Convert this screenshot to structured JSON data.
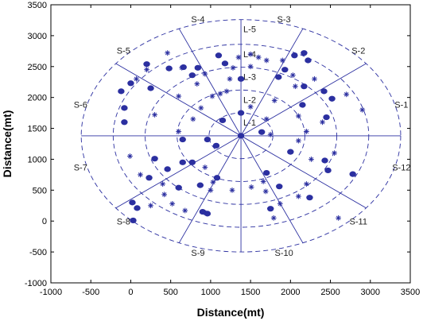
{
  "chart_data": {
    "type": "scatter",
    "xlabel": "Distance(mt)",
    "ylabel": "Distance(mt)",
    "xlim": [
      -1000,
      3500
    ],
    "ylim": [
      -1000,
      3500
    ],
    "xticks": [
      -1000,
      -500,
      0,
      500,
      1000,
      1500,
      2000,
      2500,
      3000,
      3500
    ],
    "yticks": [
      -1000,
      -500,
      0,
      500,
      1000,
      1500,
      2000,
      2500,
      3000,
      3500
    ],
    "center": [
      1380,
      1380
    ],
    "colors": {
      "marks": "#2b2fa0",
      "frame": "#000000"
    },
    "rings": [
      {
        "label": "L-1",
        "rx": 400,
        "ry": 370
      },
      {
        "label": "L-2",
        "rx": 800,
        "ry": 740
      },
      {
        "label": "L-3",
        "rx": 1200,
        "ry": 1110
      },
      {
        "label": "L-4",
        "rx": 1600,
        "ry": 1480
      },
      {
        "label": "L-5",
        "rx": 2000,
        "ry": 1880
      }
    ],
    "sectors": [
      {
        "label": "S-1",
        "angle_deg": 15
      },
      {
        "label": "S-2",
        "angle_deg": 45
      },
      {
        "label": "S-3",
        "angle_deg": 75
      },
      {
        "label": "S-4",
        "angle_deg": 105
      },
      {
        "label": "S-5",
        "angle_deg": 135
      },
      {
        "label": "S-6",
        "angle_deg": 165
      },
      {
        "label": "S-7",
        "angle_deg": 195
      },
      {
        "label": "S-8",
        "angle_deg": 225
      },
      {
        "label": "S-9",
        "angle_deg": 255
      },
      {
        "label": "S-10",
        "angle_deg": 285
      },
      {
        "label": "S-11",
        "angle_deg": 315
      },
      {
        "label": "S-12",
        "angle_deg": 345
      }
    ],
    "series": [
      {
        "marker": "dot",
        "points": [
          [
            1380,
            1380
          ],
          [
            1380,
            1750
          ],
          [
            1380,
            2300
          ],
          [
            1100,
            2680
          ],
          [
            1180,
            2550
          ],
          [
            1850,
            2330
          ],
          [
            2050,
            2680
          ],
          [
            1930,
            2450
          ],
          [
            2170,
            2720
          ],
          [
            2220,
            2600
          ],
          [
            2170,
            2180
          ],
          [
            2420,
            2100
          ],
          [
            2150,
            1880
          ],
          [
            2520,
            1980
          ],
          [
            2450,
            1680
          ],
          [
            2000,
            1120
          ],
          [
            2430,
            980
          ],
          [
            2470,
            820
          ],
          [
            2780,
            760
          ],
          [
            2240,
            380
          ],
          [
            1750,
            200
          ],
          [
            1860,
            560
          ],
          [
            1640,
            1440
          ],
          [
            1700,
            780
          ],
          [
            960,
            120
          ],
          [
            900,
            150
          ],
          [
            600,
            540
          ],
          [
            650,
            950
          ],
          [
            770,
            950
          ],
          [
            870,
            580
          ],
          [
            460,
            840
          ],
          [
            230,
            700
          ],
          [
            300,
            1010
          ],
          [
            20,
            300
          ],
          [
            80,
            210
          ],
          [
            30,
            10
          ],
          [
            -80,
            1830
          ],
          [
            -120,
            2100
          ],
          [
            -80,
            1600
          ],
          [
            0,
            2230
          ],
          [
            200,
            2540
          ],
          [
            480,
            2470
          ],
          [
            660,
            2490
          ],
          [
            770,
            2360
          ],
          [
            840,
            2480
          ],
          [
            1070,
            1220
          ],
          [
            960,
            1320
          ],
          [
            250,
            2150
          ],
          [
            1150,
            1630
          ],
          [
            650,
            1320
          ],
          [
            1080,
            700
          ]
        ]
      },
      {
        "marker": "star",
        "points": [
          [
            1600,
            2650
          ],
          [
            1500,
            2500
          ],
          [
            1700,
            2600
          ],
          [
            2030,
            2360
          ],
          [
            2060,
            2180
          ],
          [
            2300,
            2300
          ],
          [
            1800,
            1950
          ],
          [
            2100,
            1700
          ],
          [
            2700,
            2050
          ],
          [
            2900,
            1800
          ],
          [
            1700,
            1650
          ],
          [
            1750,
            1400
          ],
          [
            2260,
            1000
          ],
          [
            2100,
            1300
          ],
          [
            2550,
            1100
          ],
          [
            2600,
            50
          ],
          [
            1790,
            50
          ],
          [
            1870,
            280
          ],
          [
            2100,
            400
          ],
          [
            2200,
            600
          ],
          [
            1660,
            640
          ],
          [
            1690,
            480
          ],
          [
            1510,
            550
          ],
          [
            1270,
            500
          ],
          [
            1030,
            630
          ],
          [
            1000,
            500
          ],
          [
            930,
            870
          ],
          [
            940,
            130
          ],
          [
            680,
            170
          ],
          [
            520,
            280
          ],
          [
            420,
            430
          ],
          [
            250,
            250
          ],
          [
            400,
            600
          ],
          [
            120,
            750
          ],
          [
            -10,
            1050
          ],
          [
            200,
            2450
          ],
          [
            70,
            2300
          ],
          [
            460,
            2720
          ],
          [
            640,
            2480
          ],
          [
            830,
            2220
          ],
          [
            600,
            2020
          ],
          [
            1200,
            2100
          ],
          [
            1280,
            2480
          ],
          [
            1350,
            2650
          ],
          [
            1500,
            2700
          ],
          [
            1020,
            2020
          ],
          [
            930,
            2380
          ],
          [
            1120,
            2060
          ],
          [
            600,
            1450
          ],
          [
            780,
            1650
          ],
          [
            880,
            1830
          ],
          [
            2400,
            1600
          ],
          [
            2200,
            1450
          ],
          [
            300,
            1720
          ],
          [
            1500,
            1850
          ],
          [
            1240,
            2300
          ],
          [
            1900,
            2600
          ]
        ]
      }
    ]
  }
}
